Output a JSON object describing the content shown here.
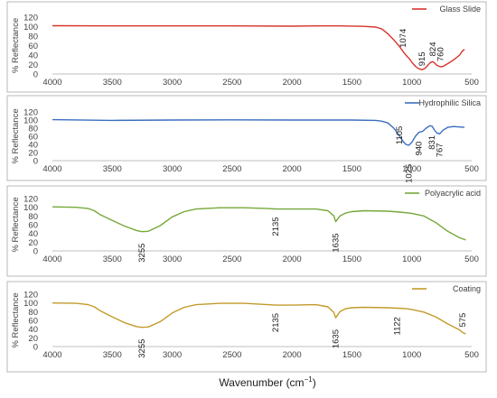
{
  "chart_data": [
    {
      "type": "line",
      "xlim": [
        4000,
        500
      ],
      "ylim": [
        0,
        120
      ],
      "xticks": [
        4000,
        3500,
        3000,
        2500,
        2000,
        1500,
        1000,
        500
      ],
      "yticks": [
        0,
        20,
        40,
        60,
        80,
        100,
        120
      ],
      "ylabel": "% Reflectance",
      "legend": "Glass Slide",
      "color": "#d8332c",
      "grid": false,
      "series": [
        {
          "name": "Glass Slide",
          "x": [
            4000,
            3500,
            3000,
            2500,
            2000,
            1800,
            1600,
            1400,
            1300,
            1250,
            1200,
            1150,
            1100,
            1074,
            1050,
            1020,
            1000,
            980,
            960,
            940,
            915,
            890,
            870,
            850,
            840,
            824,
            805,
            790,
            760,
            740,
            700,
            650,
            600,
            580,
            560
          ],
          "y": [
            102,
            101.5,
            101.5,
            101.5,
            101,
            101.5,
            101.5,
            100.5,
            99,
            95,
            85,
            72,
            57,
            48,
            40,
            32,
            25,
            19,
            14,
            11,
            9,
            12,
            17,
            23,
            25,
            26,
            22,
            18,
            15,
            16,
            22,
            30,
            40,
            48,
            52
          ]
        }
      ],
      "peak_labels": [
        {
          "x": 1074,
          "y": 48,
          "text": "1074"
        },
        {
          "x": 915,
          "y": 9,
          "text": "915"
        },
        {
          "x": 824,
          "y": 26,
          "text": "824"
        },
        {
          "x": 760,
          "y": 15,
          "text": "760"
        }
      ]
    },
    {
      "type": "line",
      "xlim": [
        4000,
        500
      ],
      "ylim": [
        0,
        120
      ],
      "xticks": [
        4000,
        3500,
        3000,
        2500,
        2000,
        1500,
        1000,
        500
      ],
      "yticks": [
        0,
        20,
        40,
        60,
        80,
        100,
        120
      ],
      "ylabel": "% Reflectance",
      "legend": "Hydrophilic Silica",
      "color": "#3a6fbf",
      "grid": false,
      "series": [
        {
          "name": "Hydrophilic Silica",
          "x": [
            4000,
            3500,
            3000,
            2500,
            2000,
            1500,
            1300,
            1250,
            1200,
            1150,
            1105,
            1075,
            1050,
            1025,
            1000,
            970,
            940,
            910,
            880,
            850,
            831,
            810,
            790,
            767,
            740,
            700,
            650,
            600,
            560
          ],
          "y": [
            101,
            99,
            100,
            100.5,
            100,
            100,
            99,
            97,
            93,
            80,
            62,
            48,
            40,
            38,
            45,
            60,
            70,
            72,
            80,
            86,
            85,
            75,
            68,
            66,
            75,
            82,
            84,
            83,
            82
          ]
        }
      ],
      "peak_labels": [
        {
          "x": 1105,
          "y": 62,
          "text": "1105"
        },
        {
          "x": 1025,
          "y": 38,
          "text": "1025"
        },
        {
          "x": 940,
          "y": 70,
          "text": "940"
        },
        {
          "x": 831,
          "y": 85,
          "text": "831"
        },
        {
          "x": 767,
          "y": 66,
          "text": "767"
        }
      ]
    },
    {
      "type": "line",
      "xlim": [
        4000,
        500
      ],
      "ylim": [
        0,
        120
      ],
      "xticks": [
        4000,
        3500,
        3000,
        2500,
        2000,
        1500,
        1000,
        500
      ],
      "yticks": [
        0,
        20,
        40,
        60,
        80,
        100,
        120
      ],
      "ylabel": "% Reflectance",
      "legend": "Polyacrylic acid",
      "color": "#76a83a",
      "grid": false,
      "series": [
        {
          "name": "Polyacrylic acid",
          "x": [
            4000,
            3800,
            3700,
            3650,
            3600,
            3500,
            3400,
            3300,
            3255,
            3200,
            3100,
            3000,
            2900,
            2800,
            2600,
            2400,
            2200,
            2135,
            2000,
            1800,
            1700,
            1650,
            1635,
            1600,
            1550,
            1500,
            1400,
            1200,
            1100,
            1000,
            900,
            800,
            700,
            600,
            550
          ],
          "y": [
            101,
            100,
            97,
            92,
            83,
            70,
            57,
            47,
            44,
            45,
            58,
            78,
            90,
            96,
            99,
            99,
            97,
            96,
            96,
            96,
            92,
            80,
            67,
            80,
            87,
            90,
            92,
            91,
            89,
            86,
            80,
            65,
            45,
            30,
            25
          ]
        }
      ],
      "peak_labels": [
        {
          "x": 3255,
          "y": 44,
          "text": "3255"
        },
        {
          "x": 2135,
          "y": 96,
          "text": "2135"
        },
        {
          "x": 1635,
          "y": 67,
          "text": "1635"
        }
      ]
    },
    {
      "type": "line",
      "xlim": [
        4000,
        500
      ],
      "ylim": [
        0,
        120
      ],
      "xticks": [
        4000,
        3500,
        3000,
        2500,
        2000,
        1500,
        1000,
        500
      ],
      "yticks": [
        0,
        20,
        40,
        60,
        80,
        100,
        120
      ],
      "ylabel": "% Reflectance",
      "xlabel": "Wavenumber (cm",
      "xlabel_sup": "−1",
      "xlabel_end": ")",
      "legend": "Coating",
      "color": "#c39a2a",
      "grid": false,
      "series": [
        {
          "name": "Coating",
          "x": [
            4000,
            3800,
            3700,
            3650,
            3600,
            3500,
            3400,
            3300,
            3255,
            3200,
            3100,
            3000,
            2900,
            2800,
            2600,
            2400,
            2200,
            2135,
            2000,
            1800,
            1700,
            1650,
            1635,
            1600,
            1550,
            1500,
            1400,
            1200,
            1122,
            1050,
            1000,
            900,
            800,
            700,
            600,
            575,
            550
          ],
          "y": [
            100,
            99,
            96,
            91,
            82,
            68,
            55,
            46,
            44,
            45,
            57,
            77,
            90,
            96,
            99,
            99,
            96,
            95,
            95,
            96,
            91,
            78,
            66,
            80,
            87,
            89,
            90,
            89,
            88,
            87,
            85,
            79,
            68,
            52,
            38,
            32,
            29
          ]
        }
      ],
      "peak_labels": [
        {
          "x": 3255,
          "y": 44,
          "text": "3255"
        },
        {
          "x": 2135,
          "y": 95,
          "text": "2135"
        },
        {
          "x": 1635,
          "y": 66,
          "text": "1635"
        },
        {
          "x": 1122,
          "y": 88,
          "text": "1122"
        },
        {
          "x": 575,
          "y": 32,
          "text": "575"
        }
      ]
    }
  ]
}
